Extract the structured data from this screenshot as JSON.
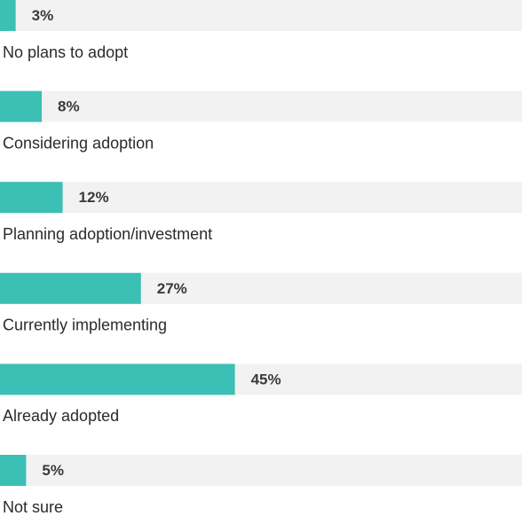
{
  "chart_data": {
    "type": "bar",
    "categories": [
      "No plans to adopt",
      "Considering adoption",
      "Planning adoption/investment",
      "Currently implementing",
      "Already adopted",
      "Not sure"
    ],
    "values": [
      3,
      8,
      12,
      27,
      45,
      5
    ],
    "value_labels": [
      "3%",
      "8%",
      "12%",
      "27%",
      "45%",
      "5%"
    ],
    "xlim": [
      0,
      100
    ],
    "color": "#3cbfb4",
    "track_color": "#f2f2f2"
  }
}
